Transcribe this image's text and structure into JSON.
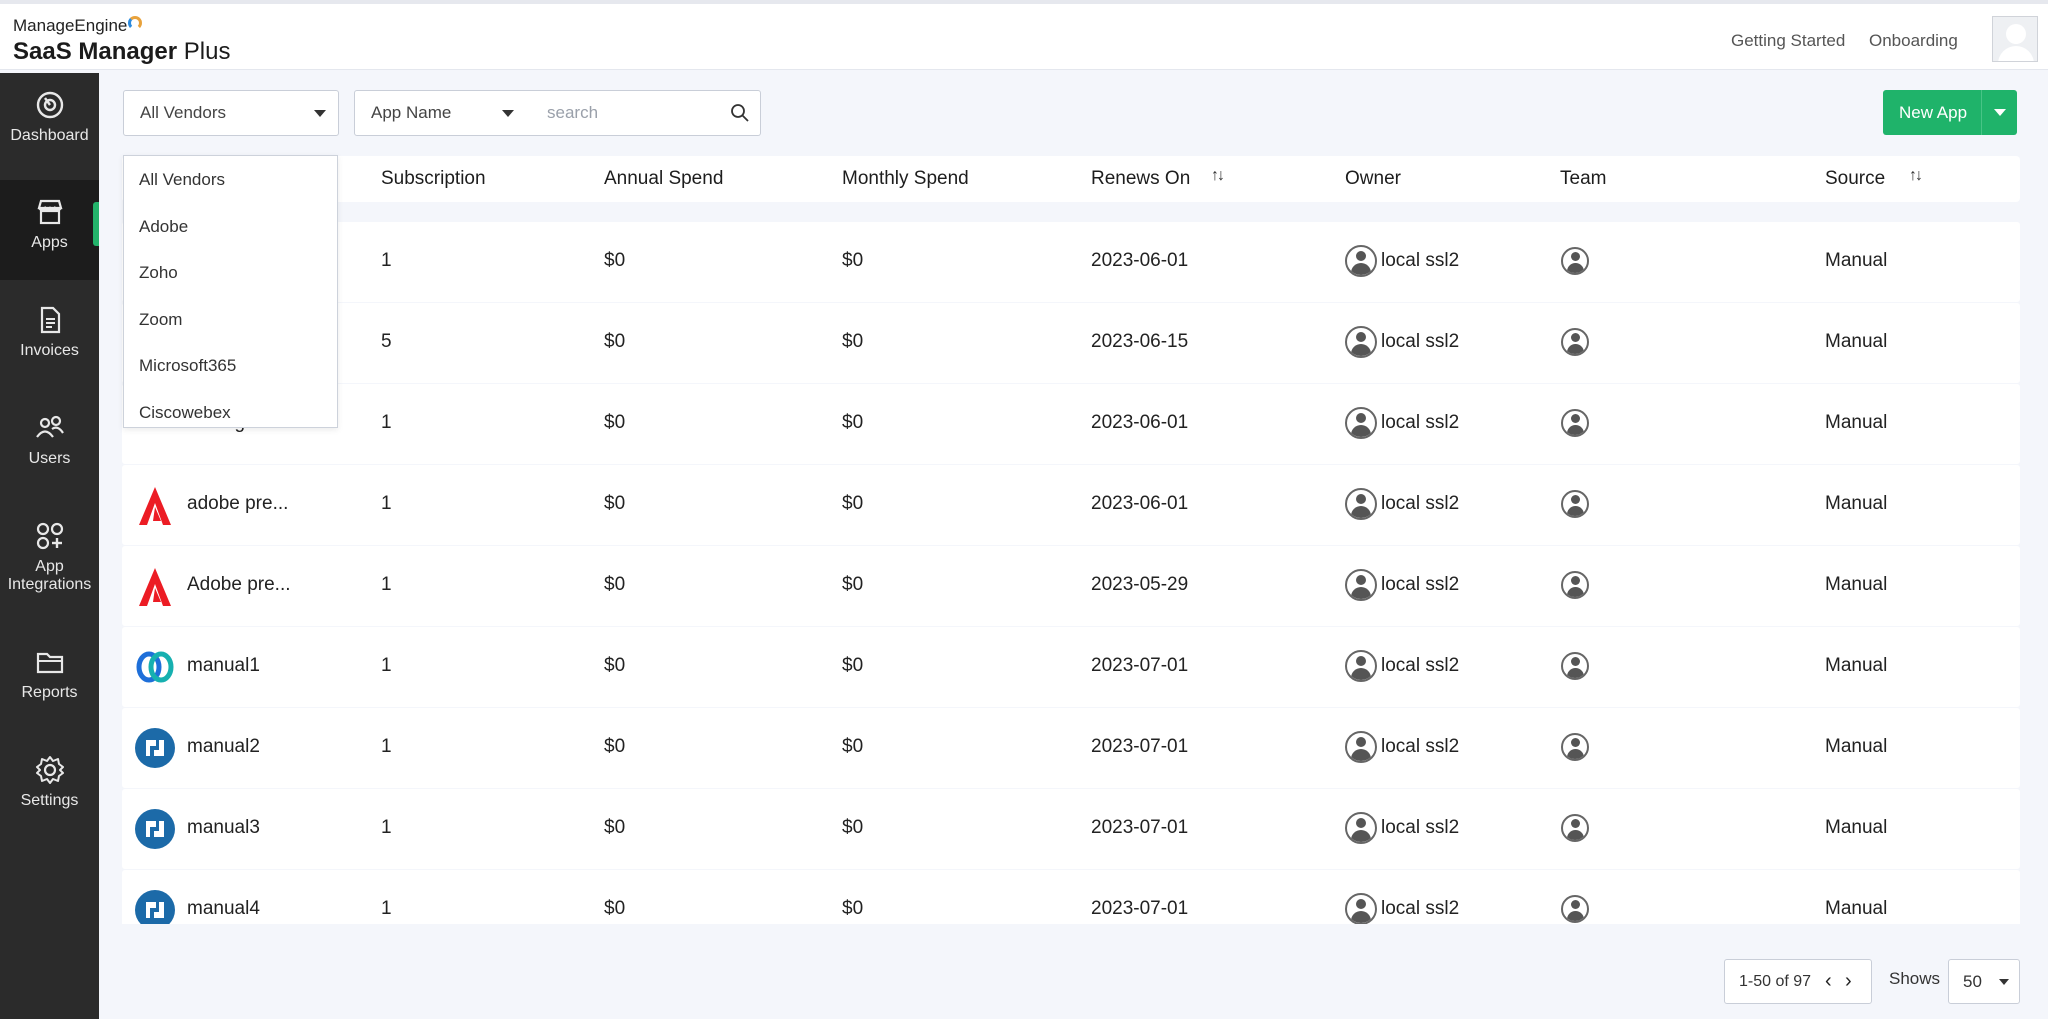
{
  "brand": {
    "company": "ManageEngine",
    "product_bold": "SaaS Manager",
    "product_rest": "Plus"
  },
  "header": {
    "links": [
      "Getting Started",
      "Onboarding"
    ]
  },
  "sidebar": {
    "items": [
      {
        "label": "Dashboard",
        "icon": "dashboard-icon"
      },
      {
        "label": "Apps",
        "icon": "store-icon",
        "active": true
      },
      {
        "label": "Invoices",
        "icon": "document-icon"
      },
      {
        "label": "Users",
        "icon": "users-icon"
      },
      {
        "label": "App Integrations",
        "icon": "integrations-icon"
      },
      {
        "label": "Reports",
        "icon": "folder-icon"
      },
      {
        "label": "Settings",
        "icon": "gear-icon"
      }
    ]
  },
  "toolbar": {
    "vendor_filter": "All Vendors",
    "field_select": "App Name",
    "search_placeholder": "search",
    "new_app_label": "New App"
  },
  "vendor_dropdown": {
    "options": [
      "All Vendors",
      "Adobe",
      "Zoho",
      "Zoom",
      "Microsoft365",
      "Ciscowebex"
    ]
  },
  "table": {
    "columns": [
      "Subscription",
      "Annual Spend",
      "Monthly Spend",
      "Renews On",
      "Owner",
      "Team",
      "Source"
    ],
    "rows": [
      {
        "app": "",
        "icon": "hidden",
        "subscription": "1",
        "annual": "$0",
        "monthly": "$0",
        "renews": "2023-06-01",
        "owner": "local ssl2",
        "source": "Manual"
      },
      {
        "app": "",
        "icon": "hidden",
        "subscription": "5",
        "annual": "$0",
        "monthly": "$0",
        "renews": "2023-06-15",
        "owner": "local ssl2",
        "source": "Manual"
      },
      {
        "app": "ManageEn...",
        "icon": "manageengine-icon",
        "subscription": "1",
        "annual": "$0",
        "monthly": "$0",
        "renews": "2023-06-01",
        "owner": "local ssl2",
        "source": "Manual"
      },
      {
        "app": "adobe pre...",
        "icon": "adobe-icon",
        "subscription": "1",
        "annual": "$0",
        "monthly": "$0",
        "renews": "2023-06-01",
        "owner": "local ssl2",
        "source": "Manual"
      },
      {
        "app": "Adobe pre...",
        "icon": "adobe-icon",
        "subscription": "1",
        "annual": "$0",
        "monthly": "$0",
        "renews": "2023-05-29",
        "owner": "local ssl2",
        "source": "Manual"
      },
      {
        "app": "manual1",
        "icon": "webex-icon",
        "subscription": "1",
        "annual": "$0",
        "monthly": "$0",
        "renews": "2023-07-01",
        "owner": "local ssl2",
        "source": "Manual"
      },
      {
        "app": "manual2",
        "icon": "generic-app-icon",
        "subscription": "1",
        "annual": "$0",
        "monthly": "$0",
        "renews": "2023-07-01",
        "owner": "local ssl2",
        "source": "Manual"
      },
      {
        "app": "manual3",
        "icon": "generic-app-icon",
        "subscription": "1",
        "annual": "$0",
        "monthly": "$0",
        "renews": "2023-07-01",
        "owner": "local ssl2",
        "source": "Manual"
      },
      {
        "app": "manual4",
        "icon": "generic-app-icon",
        "subscription": "1",
        "annual": "$0",
        "monthly": "$0",
        "renews": "2023-07-01",
        "owner": "local ssl2",
        "source": "Manual"
      }
    ]
  },
  "pagination": {
    "range": "1-50 of 97",
    "shows_label": "Shows",
    "per_page": "50"
  },
  "colors": {
    "accent": "#1fb36a",
    "sidebar": "#2b2b2b",
    "adobe": "#ec1c24",
    "app_blue": "#1c6aa8"
  }
}
